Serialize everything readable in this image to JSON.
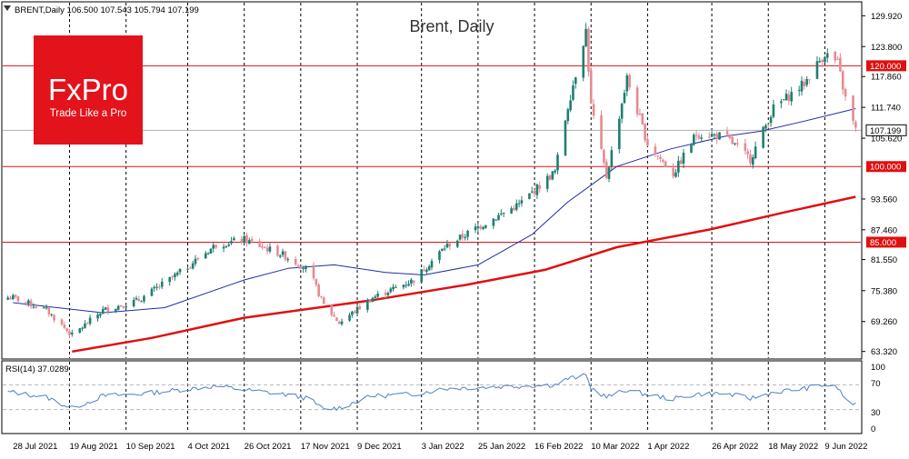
{
  "header": {
    "symbol_line": "BRENT,Daily  106.500 107.543 105.794 107.199",
    "chart_title": "Brent, Daily"
  },
  "logo": {
    "brand": "FxPro",
    "tagline": "Trade Like a Pro",
    "color": "#e3131b"
  },
  "rsi": {
    "label": "RSI(14) 37.0289",
    "levels": [
      "100",
      "70",
      "30",
      "0"
    ]
  },
  "colors": {
    "bull": "#1e7f70",
    "bear": "#e58a93",
    "ma_fast": "#1f2ea8",
    "ma_slow": "#e01010",
    "hline": "#e01010",
    "rsi_line": "#4f7fc6"
  },
  "chart_data": {
    "type": "candlestick",
    "ylim": [
      62.0,
      132.5
    ],
    "y_ticks": [
      "129.920",
      "123.800",
      "117.860",
      "111.740",
      "105.620",
      "93.560",
      "87.460",
      "81.550",
      "75.380",
      "69.260",
      "63.320"
    ],
    "x_labels": [
      "28 Jul 2021",
      "19 Aug 2021",
      "10 Sep 2021",
      "4 Oct 2021",
      "26 Oct 2021",
      "17 Nov 2021",
      "9 Dec 2021",
      "3 Jan 2022",
      "25 Jan 2022",
      "16 Feb 2022",
      "10 Mar 2022",
      "1 Apr 2022",
      "26 Apr 2022",
      "18 May 2022",
      "9 Jun 2022"
    ],
    "horizontal_levels": [
      {
        "value": 120.0,
        "label": "120.000"
      },
      {
        "value": 100.0,
        "label": "100.000"
      },
      {
        "value": 85.0,
        "label": "85.000"
      }
    ],
    "current_price": {
      "value": 107.199,
      "label": "107.199"
    },
    "trend_anchors": [
      {
        "date": "2021-07-28",
        "price": 74.0
      },
      {
        "date": "2021-08-10",
        "price": 71.5
      },
      {
        "date": "2021-08-20",
        "price": 66.5
      },
      {
        "date": "2021-09-01",
        "price": 71.5
      },
      {
        "date": "2021-09-15",
        "price": 73.5
      },
      {
        "date": "2021-10-01",
        "price": 79.0
      },
      {
        "date": "2021-10-15",
        "price": 84.5
      },
      {
        "date": "2021-10-26",
        "price": 85.5
      },
      {
        "date": "2021-11-10",
        "price": 82.5
      },
      {
        "date": "2021-11-20",
        "price": 79.5
      },
      {
        "date": "2021-11-26",
        "price": 72.5
      },
      {
        "date": "2021-12-02",
        "price": 69.0
      },
      {
        "date": "2021-12-15",
        "price": 74.0
      },
      {
        "date": "2021-12-31",
        "price": 77.5
      },
      {
        "date": "2022-01-12",
        "price": 84.0
      },
      {
        "date": "2022-01-25",
        "price": 88.0
      },
      {
        "date": "2022-02-10",
        "price": 92.5
      },
      {
        "date": "2022-02-24",
        "price": 99.0
      },
      {
        "date": "2022-03-01",
        "price": 112.0
      },
      {
        "date": "2022-03-08",
        "price": 127.0
      },
      {
        "date": "2022-03-10",
        "price": 112.0
      },
      {
        "date": "2022-03-16",
        "price": 98.0
      },
      {
        "date": "2022-03-24",
        "price": 117.5
      },
      {
        "date": "2022-04-01",
        "price": 104.5
      },
      {
        "date": "2022-04-11",
        "price": 98.5
      },
      {
        "date": "2022-04-20",
        "price": 106.5
      },
      {
        "date": "2022-05-01",
        "price": 106.0
      },
      {
        "date": "2022-05-11",
        "price": 101.5
      },
      {
        "date": "2022-05-20",
        "price": 111.5
      },
      {
        "date": "2022-06-01",
        "price": 116.5
      },
      {
        "date": "2022-06-09",
        "price": 122.5
      },
      {
        "date": "2022-06-14",
        "price": 120.5
      },
      {
        "date": "2022-06-17",
        "price": 113.5
      },
      {
        "date": "2022-06-21",
        "price": 107.2
      }
    ],
    "ma_fast": [
      {
        "date": "2021-07-28",
        "price": 73.0
      },
      {
        "date": "2021-09-01",
        "price": 71.0
      },
      {
        "date": "2021-09-25",
        "price": 72.0
      },
      {
        "date": "2021-10-26",
        "price": 77.5
      },
      {
        "date": "2021-11-12",
        "price": 79.8
      },
      {
        "date": "2021-11-30",
        "price": 80.5
      },
      {
        "date": "2021-12-20",
        "price": 79.0
      },
      {
        "date": "2022-01-04",
        "price": 78.5
      },
      {
        "date": "2022-01-25",
        "price": 80.5
      },
      {
        "date": "2022-02-15",
        "price": 86.5
      },
      {
        "date": "2022-03-01",
        "price": 93.0
      },
      {
        "date": "2022-03-20",
        "price": 100.0
      },
      {
        "date": "2022-04-10",
        "price": 103.5
      },
      {
        "date": "2022-05-01",
        "price": 106.0
      },
      {
        "date": "2022-05-15",
        "price": 107.0
      },
      {
        "date": "2022-06-01",
        "price": 109.0
      },
      {
        "date": "2022-06-21",
        "price": 111.5
      }
    ],
    "ma_slow": [
      {
        "date": "2021-08-20",
        "price": 63.3
      },
      {
        "date": "2021-09-20",
        "price": 66.0
      },
      {
        "date": "2021-10-26",
        "price": 70.0
      },
      {
        "date": "2021-12-15",
        "price": 73.5
      },
      {
        "date": "2022-01-20",
        "price": 76.5
      },
      {
        "date": "2022-02-20",
        "price": 79.5
      },
      {
        "date": "2022-03-20",
        "price": 84.0
      },
      {
        "date": "2022-04-25",
        "price": 87.5
      },
      {
        "date": "2022-05-25",
        "price": 91.0
      },
      {
        "date": "2022-06-21",
        "price": 94.0
      }
    ],
    "rsi_anchors": [
      {
        "date": "2021-07-28",
        "value": 58
      },
      {
        "date": "2021-08-10",
        "value": 50
      },
      {
        "date": "2021-08-20",
        "value": 32
      },
      {
        "date": "2021-09-01",
        "value": 52
      },
      {
        "date": "2021-09-15",
        "value": 55
      },
      {
        "date": "2021-10-01",
        "value": 62
      },
      {
        "date": "2021-10-15",
        "value": 68
      },
      {
        "date": "2021-10-26",
        "value": 62
      },
      {
        "date": "2021-11-10",
        "value": 55
      },
      {
        "date": "2021-11-20",
        "value": 48
      },
      {
        "date": "2021-11-26",
        "value": 30
      },
      {
        "date": "2021-12-02",
        "value": 33
      },
      {
        "date": "2021-12-15",
        "value": 52
      },
      {
        "date": "2021-12-31",
        "value": 55
      },
      {
        "date": "2022-01-12",
        "value": 64
      },
      {
        "date": "2022-01-25",
        "value": 66
      },
      {
        "date": "2022-02-10",
        "value": 68
      },
      {
        "date": "2022-02-24",
        "value": 70
      },
      {
        "date": "2022-03-01",
        "value": 80
      },
      {
        "date": "2022-03-08",
        "value": 85
      },
      {
        "date": "2022-03-10",
        "value": 65
      },
      {
        "date": "2022-03-16",
        "value": 50
      },
      {
        "date": "2022-03-24",
        "value": 62
      },
      {
        "date": "2022-04-01",
        "value": 54
      },
      {
        "date": "2022-04-11",
        "value": 47
      },
      {
        "date": "2022-04-20",
        "value": 55
      },
      {
        "date": "2022-05-01",
        "value": 56
      },
      {
        "date": "2022-05-11",
        "value": 48
      },
      {
        "date": "2022-05-20",
        "value": 58
      },
      {
        "date": "2022-06-01",
        "value": 64
      },
      {
        "date": "2022-06-09",
        "value": 70
      },
      {
        "date": "2022-06-14",
        "value": 65
      },
      {
        "date": "2022-06-17",
        "value": 47
      },
      {
        "date": "2022-06-21",
        "value": 37
      }
    ]
  }
}
